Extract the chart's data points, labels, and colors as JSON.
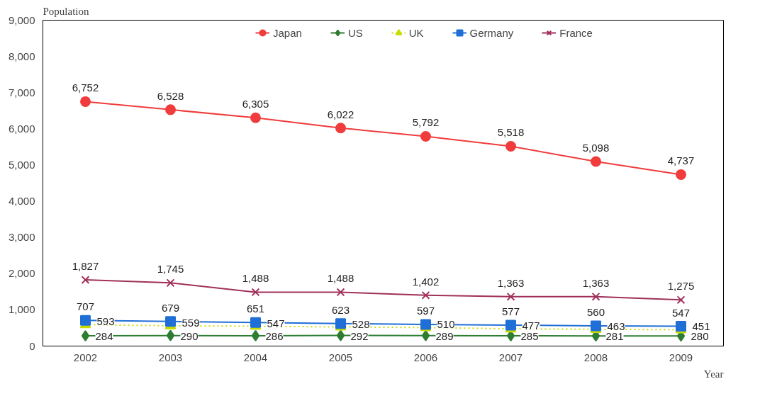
{
  "chart_data": {
    "type": "line",
    "xlabel": "Year",
    "ylabel": "Population",
    "categories": [
      "2002",
      "2003",
      "2004",
      "2005",
      "2006",
      "2007",
      "2008",
      "2009"
    ],
    "series": [
      {
        "name": "Japan",
        "color": "#f03c3c",
        "marker": "circle",
        "values": [
          6752,
          6528,
          6305,
          6022,
          5792,
          5518,
          5098,
          4737
        ],
        "value_labels": [
          "6,752",
          "6,528",
          "6,305",
          "6,022",
          "5,792",
          "5,518",
          "5,098",
          "4,737"
        ]
      },
      {
        "name": "US",
        "color": "#2e7d32",
        "marker": "diamond",
        "values": [
          284,
          290,
          286,
          292,
          289,
          285,
          281,
          280
        ],
        "value_labels": [
          "284",
          "290",
          "286",
          "292",
          "289",
          "285",
          "281",
          "280"
        ]
      },
      {
        "name": "UK",
        "color": "#c8dc00",
        "marker": "triangle",
        "line_style": "dotted",
        "values": [
          593,
          559,
          547,
          528,
          510,
          477,
          463,
          451
        ],
        "value_labels": [
          "593",
          "559",
          "547",
          "528",
          "510",
          "477",
          "463",
          "451"
        ]
      },
      {
        "name": "Germany",
        "color": "#1f6fd6",
        "marker": "square",
        "values": [
          707,
          679,
          651,
          623,
          597,
          577,
          560,
          547
        ],
        "value_labels": [
          "707",
          "679",
          "651",
          "623",
          "597",
          "577",
          "560",
          "547"
        ]
      },
      {
        "name": "France",
        "color": "#a0305a",
        "marker": "cross",
        "values": [
          1827,
          1745,
          1488,
          1488,
          1402,
          1363,
          1363,
          1275
        ],
        "value_labels": [
          "1,827",
          "1,745",
          "1,488",
          "1,488",
          "1,402",
          "1,363",
          "1,363",
          "1,275"
        ]
      }
    ],
    "ylim": [
      0,
      9000
    ],
    "yticks": [
      {
        "value": 0,
        "label": "0"
      },
      {
        "value": 1000,
        "label": "1,000"
      },
      {
        "value": 2000,
        "label": "2,000"
      },
      {
        "value": 3000,
        "label": "3,000"
      },
      {
        "value": 4000,
        "label": "4,000"
      },
      {
        "value": 5000,
        "label": "5,000"
      },
      {
        "value": 6000,
        "label": "6,000"
      },
      {
        "value": 7000,
        "label": "7,000"
      },
      {
        "value": 8000,
        "label": "8,000"
      },
      {
        "value": 9000,
        "label": "9,000"
      }
    ],
    "legend": "top"
  }
}
